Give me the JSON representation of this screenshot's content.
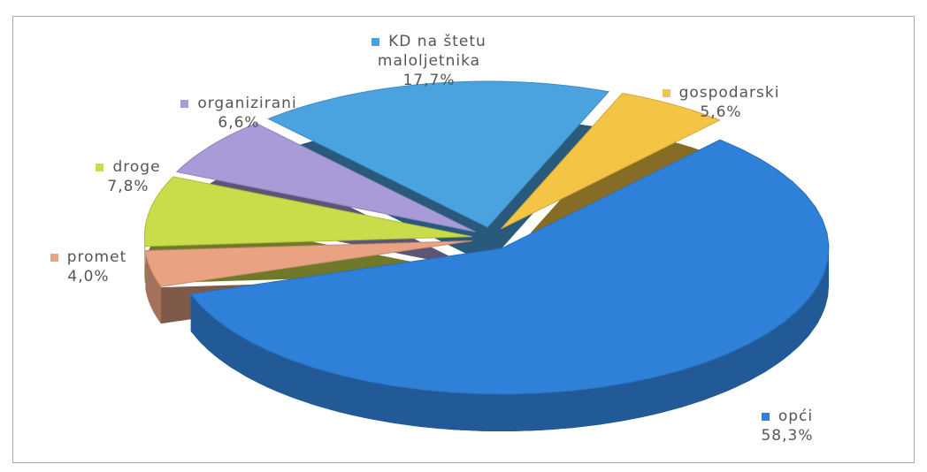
{
  "chart_data": {
    "type": "pie",
    "categories": [
      "KD na štetu maloljetnika",
      "gospodarski",
      "opći",
      "promet",
      "droge",
      "organizirani"
    ],
    "values": [
      17.7,
      5.6,
      58.3,
      4.0,
      7.8,
      6.6
    ],
    "value_labels": [
      "17,7%",
      "5,6%",
      "58,3%",
      "4,0%",
      "7,8%",
      "6,6%"
    ],
    "colors": [
      "#4aa3df",
      "#f4c444",
      "#2f80d8",
      "#e9a383",
      "#c9dc4a",
      "#a99bd8"
    ]
  }
}
